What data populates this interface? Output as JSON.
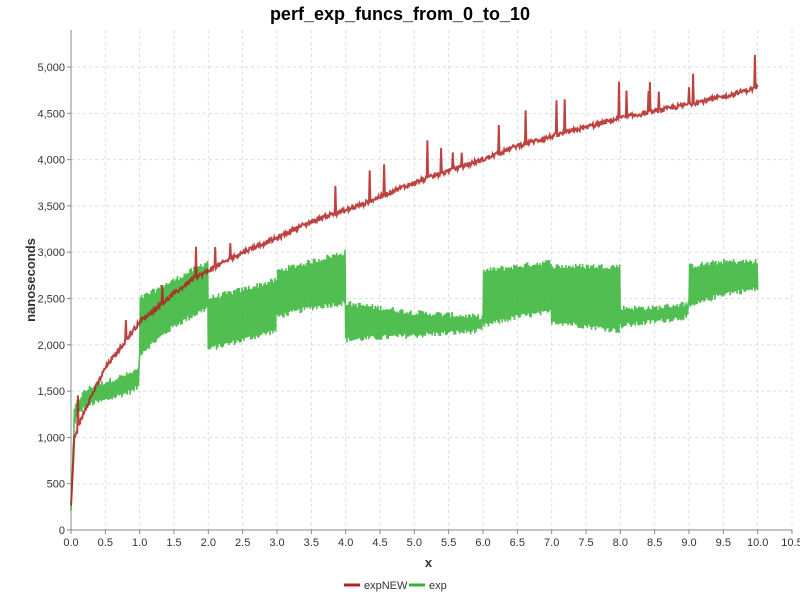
{
  "chart_data": {
    "type": "line",
    "title": "perf_exp_funcs_from_0_to_10",
    "xlabel": "x",
    "ylabel": "nanoseconds",
    "xlim": [
      0,
      10.5
    ],
    "ylim": [
      0,
      5400
    ],
    "x_ticks": [
      0,
      0.5,
      1,
      1.5,
      2,
      2.5,
      3,
      3.5,
      4,
      4.5,
      5,
      5.5,
      6,
      6.5,
      7,
      7.5,
      8,
      8.5,
      9,
      9.5,
      10,
      10.5
    ],
    "x_tick_labels": [
      "0.0",
      "0.5",
      "1.0",
      "1.5",
      "2.0",
      "2.5",
      "3.0",
      "3.5",
      "4.0",
      "4.5",
      "5.0",
      "5.5",
      "6.0",
      "6.5",
      "7.0",
      "7.5",
      "8.0",
      "8.5",
      "9.0",
      "9.5",
      "10.0",
      "10.5"
    ],
    "y_ticks": [
      0,
      500,
      1000,
      1500,
      2000,
      2500,
      3000,
      3500,
      4000,
      4500,
      5000
    ],
    "y_tick_labels": [
      "0",
      "500",
      "1,000",
      "1,500",
      "2,000",
      "2,500",
      "3,000",
      "3,500",
      "4,000",
      "4,500",
      "5,000"
    ],
    "grid": true,
    "legend_position": "bottom-center",
    "series": [
      {
        "name": "expNEW",
        "color": "#b22222",
        "x": [
          0,
          0.05,
          0.1,
          0.2,
          0.3,
          0.4,
          0.5,
          0.6,
          0.7,
          0.8,
          0.9,
          1.0,
          1.25,
          1.5,
          1.75,
          2.0,
          2.25,
          2.5,
          2.75,
          3.0,
          3.25,
          3.5,
          3.75,
          4.0,
          4.25,
          4.5,
          4.75,
          5.0,
          5.5,
          6.0,
          6.5,
          7.0,
          7.5,
          8.0,
          8.5,
          9.0,
          9.5,
          10.0
        ],
        "y": [
          250,
          1000,
          1100,
          1300,
          1450,
          1600,
          1750,
          1850,
          1950,
          2050,
          2150,
          2250,
          2400,
          2550,
          2700,
          2800,
          2900,
          3000,
          3080,
          3150,
          3250,
          3330,
          3400,
          3450,
          3520,
          3600,
          3680,
          3750,
          3880,
          4000,
          4150,
          4250,
          4350,
          4450,
          4520,
          4600,
          4680,
          4780
        ]
      },
      {
        "name": "exp",
        "color": "#33b333",
        "x": [
          0,
          0.05,
          0.1,
          0.2,
          0.3,
          0.5,
          0.7,
          0.9,
          0.99,
          1.0,
          1.25,
          1.5,
          1.75,
          1.99,
          2.0,
          2.5,
          2.99,
          3.0,
          3.5,
          3.99,
          4.0,
          5.0,
          5.99,
          6.0,
          6.5,
          6.99,
          7.0,
          7.5,
          7.99,
          8.0,
          8.5,
          8.99,
          9.0,
          9.5,
          10.0
        ],
        "y": [
          200,
          1150,
          1250,
          1320,
          1360,
          1400,
          1450,
          1500,
          1550,
          1900,
          2050,
          2200,
          2300,
          2400,
          1950,
          2050,
          2150,
          2300,
          2400,
          2450,
          2050,
          2100,
          2150,
          2200,
          2300,
          2350,
          2250,
          2200,
          2150,
          2200,
          2250,
          2300,
          2400,
          2550,
          2600
        ],
        "spike_high_y": [
          200,
          1300,
          1400,
          1500,
          1550,
          1600,
          1650,
          1700,
          1750,
          2500,
          2600,
          2700,
          2800,
          2900,
          2500,
          2600,
          2700,
          2800,
          2900,
          3000,
          2450,
          2350,
          2300,
          2800,
          2850,
          2900,
          2850,
          2850,
          2850,
          2400,
          2400,
          2450,
          2850,
          2900,
          2900
        ]
      }
    ]
  }
}
